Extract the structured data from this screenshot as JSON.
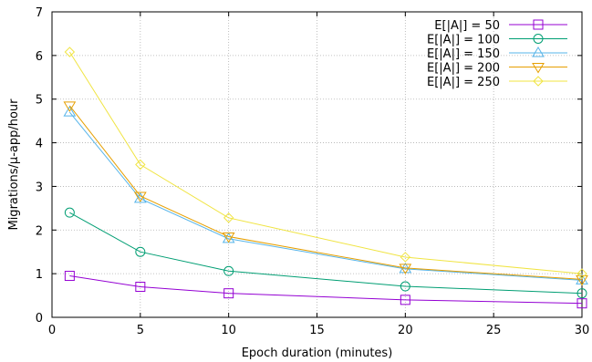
{
  "chart_data": {
    "type": "line",
    "xlabel": "Epoch duration (minutes)",
    "ylabel": "Migrations/µ-app/hour",
    "xlim": [
      0,
      30
    ],
    "ylim": [
      0,
      7
    ],
    "xticks": [
      0,
      5,
      10,
      15,
      20,
      25,
      30
    ],
    "yticks": [
      0,
      1,
      2,
      3,
      4,
      5,
      6,
      7
    ],
    "grid": true,
    "legend_position": "top-right",
    "x": [
      1,
      5,
      10,
      20,
      30
    ],
    "series": [
      {
        "name": "E[|A|] = 50",
        "values": [
          0.95,
          0.7,
          0.55,
          0.4,
          0.32
        ],
        "marker": "square",
        "color": "#9400d3"
      },
      {
        "name": "E[|A|] = 100",
        "values": [
          2.4,
          1.5,
          1.06,
          0.71,
          0.55
        ],
        "marker": "circle",
        "color": "#009e73"
      },
      {
        "name": "E[|A|] = 150",
        "values": [
          4.7,
          2.72,
          1.8,
          1.11,
          0.85
        ],
        "marker": "triangle-up",
        "color": "#56b4e9"
      },
      {
        "name": "E[|A|] = 200",
        "values": [
          4.85,
          2.78,
          1.85,
          1.13,
          0.87
        ],
        "marker": "triangle-down",
        "color": "#e69f00"
      },
      {
        "name": "E[|A|] = 250",
        "values": [
          6.08,
          3.5,
          2.28,
          1.38,
          1.0
        ],
        "marker": "diamond",
        "color": "#f0e442"
      }
    ]
  }
}
